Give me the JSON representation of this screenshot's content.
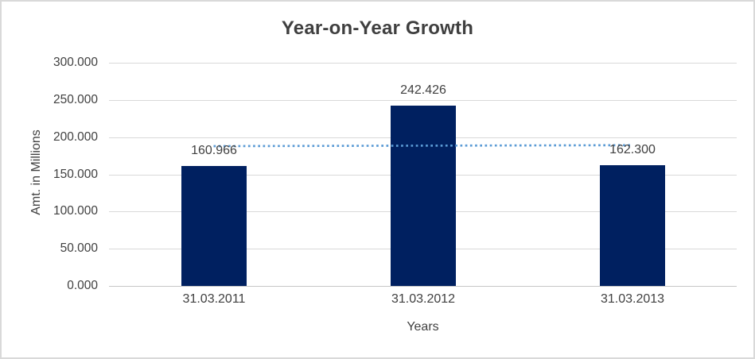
{
  "chart_data": {
    "type": "bar",
    "title": "Year-on-Year Growth",
    "xlabel": "Years",
    "ylabel": "Amt. in Millions",
    "categories": [
      "31.03.2011",
      "31.03.2012",
      "31.03.2013"
    ],
    "values": [
      160.966,
      242.426,
      162.3
    ],
    "value_labels": [
      "160.966",
      "242.426",
      "162.300"
    ],
    "ylim": [
      0,
      300
    ],
    "ytick_values": [
      0,
      50,
      100,
      150,
      200,
      250,
      300
    ],
    "ytick_labels": [
      "0.000",
      "50.000",
      "100.000",
      "150.000",
      "200.000",
      "250.000",
      "300.000"
    ],
    "grid": "horizontal",
    "legend": "none",
    "trendline": {
      "style": "dotted",
      "start_value": 187.9,
      "end_value": 189.2
    },
    "colors": {
      "bar": "#002060",
      "trendline": "#5B9BD5",
      "gridline": "#D9D9D9",
      "axis_line": "#C6C6C6",
      "axis_text": "#404040",
      "title_text": "#3F3F3F",
      "frame_border": "#D9D9D9",
      "background": "#FFFFFF"
    }
  }
}
